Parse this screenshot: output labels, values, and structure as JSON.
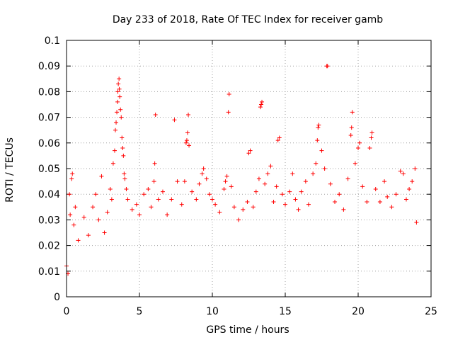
{
  "chart_data": {
    "type": "scatter",
    "title": "Day 233 of 2018, Rate Of TEC Index for receiver gamb",
    "xlabel": "GPS time / hours",
    "ylabel": "ROTI / TECUs",
    "xlim": [
      0,
      25
    ],
    "ylim": [
      0,
      0.1
    ],
    "x_ticks": [
      0,
      5,
      10,
      15,
      20,
      25
    ],
    "x_tick_labels": [
      "0",
      "5",
      "10",
      "15",
      "20",
      "25"
    ],
    "y_ticks": [
      0,
      0.01,
      0.02,
      0.03,
      0.04,
      0.05,
      0.06,
      0.07,
      0.08,
      0.09,
      0.1
    ],
    "y_tick_labels": [
      "0",
      "0.01",
      "0.02",
      "0.03",
      "0.04",
      "0.05",
      "0.06",
      "0.07",
      "0.08",
      "0.09",
      "0.1"
    ],
    "grid": true,
    "marker": "+",
    "marker_color": "#ff0000",
    "series": [
      {
        "name": "ROTI",
        "points": [
          [
            0.0,
            0.012
          ],
          [
            0.1,
            0.009
          ],
          [
            0.2,
            0.04
          ],
          [
            0.25,
            0.032
          ],
          [
            0.35,
            0.046
          ],
          [
            0.4,
            0.048
          ],
          [
            0.5,
            0.028
          ],
          [
            0.6,
            0.035
          ],
          [
            0.8,
            0.022
          ],
          [
            1.2,
            0.031
          ],
          [
            1.5,
            0.024
          ],
          [
            1.8,
            0.035
          ],
          [
            2.0,
            0.04
          ],
          [
            2.2,
            0.03
          ],
          [
            2.4,
            0.047
          ],
          [
            2.6,
            0.025
          ],
          [
            2.8,
            0.033
          ],
          [
            3.0,
            0.042
          ],
          [
            3.1,
            0.038
          ],
          [
            3.2,
            0.052
          ],
          [
            3.3,
            0.057
          ],
          [
            3.35,
            0.065
          ],
          [
            3.4,
            0.068
          ],
          [
            3.45,
            0.072
          ],
          [
            3.5,
            0.076
          ],
          [
            3.52,
            0.08
          ],
          [
            3.55,
            0.083
          ],
          [
            3.6,
            0.085
          ],
          [
            3.62,
            0.081
          ],
          [
            3.65,
            0.078
          ],
          [
            3.7,
            0.073
          ],
          [
            3.75,
            0.07
          ],
          [
            3.8,
            0.062
          ],
          [
            3.85,
            0.058
          ],
          [
            3.9,
            0.055
          ],
          [
            3.95,
            0.048
          ],
          [
            4.0,
            0.046
          ],
          [
            4.1,
            0.042
          ],
          [
            4.2,
            0.038
          ],
          [
            4.5,
            0.034
          ],
          [
            4.8,
            0.036
          ],
          [
            5.0,
            0.032
          ],
          [
            5.3,
            0.04
          ],
          [
            5.6,
            0.042
          ],
          [
            5.8,
            0.035
          ],
          [
            6.0,
            0.045
          ],
          [
            6.05,
            0.052
          ],
          [
            6.1,
            0.071
          ],
          [
            6.3,
            0.038
          ],
          [
            6.6,
            0.041
          ],
          [
            6.9,
            0.032
          ],
          [
            7.2,
            0.038
          ],
          [
            7.4,
            0.069
          ],
          [
            7.6,
            0.045
          ],
          [
            7.9,
            0.036
          ],
          [
            8.1,
            0.045
          ],
          [
            8.2,
            0.06
          ],
          [
            8.25,
            0.061
          ],
          [
            8.3,
            0.064
          ],
          [
            8.35,
            0.071
          ],
          [
            8.4,
            0.059
          ],
          [
            8.6,
            0.041
          ],
          [
            8.9,
            0.038
          ],
          [
            9.1,
            0.044
          ],
          [
            9.3,
            0.048
          ],
          [
            9.4,
            0.05
          ],
          [
            9.6,
            0.046
          ],
          [
            9.8,
            0.04
          ],
          [
            10.0,
            0.038
          ],
          [
            10.2,
            0.036
          ],
          [
            10.5,
            0.033
          ],
          [
            10.8,
            0.042
          ],
          [
            10.9,
            0.045
          ],
          [
            11.0,
            0.047
          ],
          [
            11.1,
            0.072
          ],
          [
            11.15,
            0.079
          ],
          [
            11.3,
            0.043
          ],
          [
            11.5,
            0.035
          ],
          [
            11.8,
            0.03
          ],
          [
            12.1,
            0.034
          ],
          [
            12.4,
            0.037
          ],
          [
            12.5,
            0.056
          ],
          [
            12.6,
            0.057
          ],
          [
            12.8,
            0.035
          ],
          [
            13.0,
            0.041
          ],
          [
            13.2,
            0.046
          ],
          [
            13.3,
            0.074
          ],
          [
            13.35,
            0.075
          ],
          [
            13.4,
            0.076
          ],
          [
            13.6,
            0.044
          ],
          [
            13.8,
            0.048
          ],
          [
            14.0,
            0.051
          ],
          [
            14.2,
            0.037
          ],
          [
            14.4,
            0.043
          ],
          [
            14.5,
            0.061
          ],
          [
            14.6,
            0.062
          ],
          [
            14.8,
            0.04
          ],
          [
            15.0,
            0.036
          ],
          [
            15.3,
            0.041
          ],
          [
            15.5,
            0.048
          ],
          [
            15.7,
            0.038
          ],
          [
            15.9,
            0.034
          ],
          [
            16.1,
            0.041
          ],
          [
            16.4,
            0.045
          ],
          [
            16.6,
            0.036
          ],
          [
            16.9,
            0.048
          ],
          [
            17.1,
            0.052
          ],
          [
            17.2,
            0.061
          ],
          [
            17.25,
            0.066
          ],
          [
            17.3,
            0.067
          ],
          [
            17.5,
            0.057
          ],
          [
            17.7,
            0.05
          ],
          [
            17.85,
            0.09
          ],
          [
            17.9,
            0.09
          ],
          [
            18.1,
            0.044
          ],
          [
            18.4,
            0.037
          ],
          [
            18.7,
            0.04
          ],
          [
            19.0,
            0.034
          ],
          [
            19.3,
            0.046
          ],
          [
            19.5,
            0.063
          ],
          [
            19.55,
            0.066
          ],
          [
            19.6,
            0.072
          ],
          [
            19.8,
            0.052
          ],
          [
            20.0,
            0.058
          ],
          [
            20.1,
            0.06
          ],
          [
            20.3,
            0.043
          ],
          [
            20.6,
            0.037
          ],
          [
            20.8,
            0.058
          ],
          [
            20.9,
            0.062
          ],
          [
            20.95,
            0.064
          ],
          [
            21.2,
            0.042
          ],
          [
            21.5,
            0.037
          ],
          [
            21.8,
            0.045
          ],
          [
            22.0,
            0.039
          ],
          [
            22.3,
            0.035
          ],
          [
            22.6,
            0.04
          ],
          [
            22.9,
            0.049
          ],
          [
            23.1,
            0.048
          ],
          [
            23.3,
            0.038
          ],
          [
            23.5,
            0.042
          ],
          [
            23.7,
            0.045
          ],
          [
            23.9,
            0.05
          ],
          [
            24.0,
            0.029
          ]
        ]
      }
    ]
  }
}
